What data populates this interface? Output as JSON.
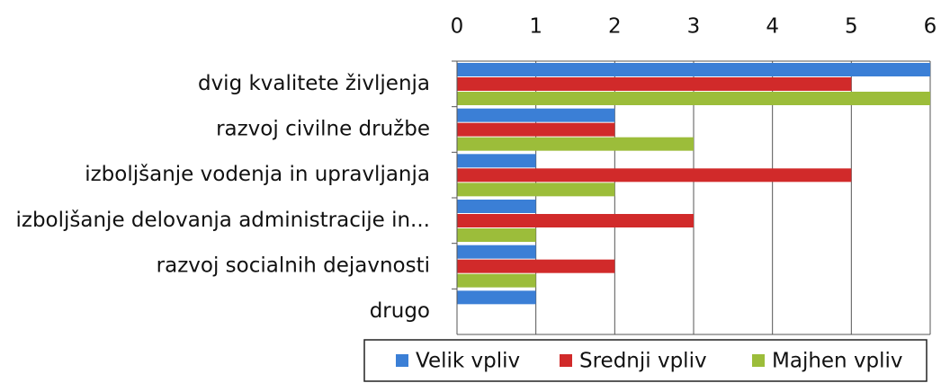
{
  "chart_data": {
    "type": "hbar",
    "categories": [
      "dvig kvalitete življenja",
      "razvoj civilne družbe",
      "izboljšanje vodenja in upravljanja",
      "izboljšanje delovanja administracije in...",
      "razvoj socialnih dejavnosti",
      "drugo"
    ],
    "series": [
      {
        "name": "Velik vpliv",
        "color": "#3b7fd6",
        "values": [
          6,
          2,
          1,
          1,
          1,
          1
        ]
      },
      {
        "name": "Srednji vpliv",
        "color": "#d12a2a",
        "values": [
          5,
          2,
          5,
          3,
          2,
          0
        ]
      },
      {
        "name": "Majhen vpliv",
        "color": "#9cbd3a",
        "values": [
          6,
          3,
          2,
          1,
          1,
          0
        ]
      }
    ],
    "xlim": [
      0,
      6
    ],
    "xticks": [
      0,
      1,
      2,
      3,
      4,
      5,
      6
    ],
    "grid": true,
    "legend": "bottom"
  }
}
